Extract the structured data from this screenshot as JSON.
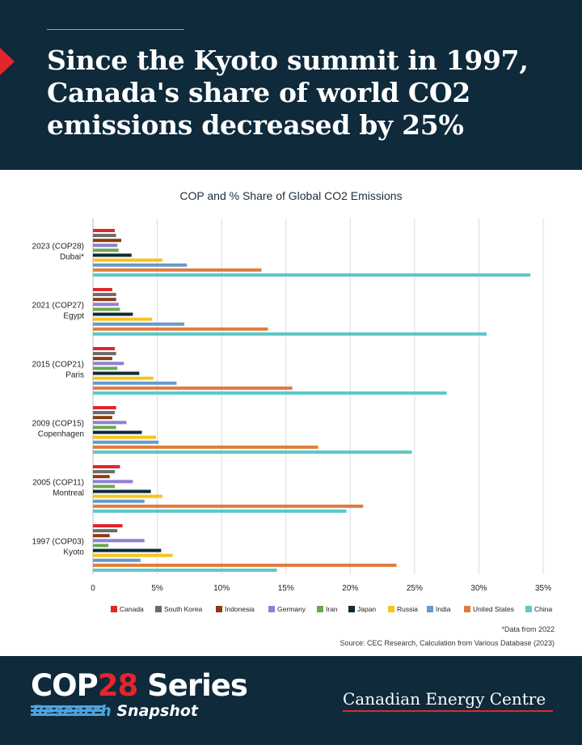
{
  "headline": "Since the Kyoto summit in 1997, Canada's share of world CO2 emissions decreased by 25%",
  "footnote": "*Data from 2022",
  "source": "Source: CEC Research, Calculation from Various Database (2023)",
  "footer": {
    "series_cop": "COP",
    "series_num": "28",
    "series_word": " Series",
    "sub_research": "Research",
    "sub_snapshot": "Snapshot",
    "publisher": "Canadian Energy Centre"
  },
  "colors": {
    "header_bg": "#0e2a3b",
    "accent_red": "#e3252c"
  },
  "chart_data": {
    "type": "bar",
    "orientation": "horizontal",
    "title": "COP and % Share of Global CO2 Emissions",
    "xlabel": "",
    "ylabel": "",
    "xlim": [
      0,
      35
    ],
    "xticks": [
      "0",
      "5%",
      "10%",
      "15%",
      "20%",
      "25%",
      "30%",
      "35%"
    ],
    "grid": "vertical",
    "legend_position": "bottom",
    "categories": [
      [
        "2023 (COP28)",
        "Dubai*"
      ],
      [
        "2021 (COP27)",
        "Egypt"
      ],
      [
        "2015 (COP21)",
        "Paris"
      ],
      [
        "2009 (COP15)",
        "Copenhagen"
      ],
      [
        "2005 (COP11)",
        "Montreal"
      ],
      [
        "1997 (COP03)",
        "Kyoto"
      ]
    ],
    "series": [
      {
        "name": "Canada",
        "color": "#e3252c",
        "values": [
          1.7,
          1.5,
          1.7,
          1.8,
          2.1,
          2.3
        ]
      },
      {
        "name": "South Korea",
        "color": "#6b6b6b",
        "values": [
          1.8,
          1.8,
          1.8,
          1.7,
          1.7,
          1.9
        ]
      },
      {
        "name": "Indonesia",
        "color": "#8a3b12",
        "values": [
          2.2,
          1.8,
          1.5,
          1.5,
          1.3,
          1.3
        ]
      },
      {
        "name": "Germany",
        "color": "#8e80d6",
        "values": [
          1.9,
          2.0,
          2.4,
          2.6,
          3.1,
          4.0
        ]
      },
      {
        "name": "Iran",
        "color": "#6aa84f",
        "values": [
          2.0,
          2.1,
          1.9,
          1.8,
          1.7,
          1.2
        ]
      },
      {
        "name": "Japan",
        "color": "#0e2a3b",
        "values": [
          3.0,
          3.1,
          3.6,
          3.8,
          4.5,
          5.3
        ]
      },
      {
        "name": "Russia",
        "color": "#f5c518",
        "values": [
          5.4,
          4.6,
          4.7,
          4.9,
          5.4,
          6.2
        ]
      },
      {
        "name": "India",
        "color": "#6699cc",
        "values": [
          7.3,
          7.1,
          6.5,
          5.1,
          4.0,
          3.7
        ]
      },
      {
        "name": "United States",
        "color": "#e07b3c",
        "values": [
          13.1,
          13.6,
          15.5,
          17.5,
          21.0,
          23.6
        ]
      },
      {
        "name": "China",
        "color": "#5cc8c8",
        "values": [
          34.0,
          30.6,
          27.5,
          24.8,
          19.7,
          14.3
        ]
      }
    ]
  }
}
